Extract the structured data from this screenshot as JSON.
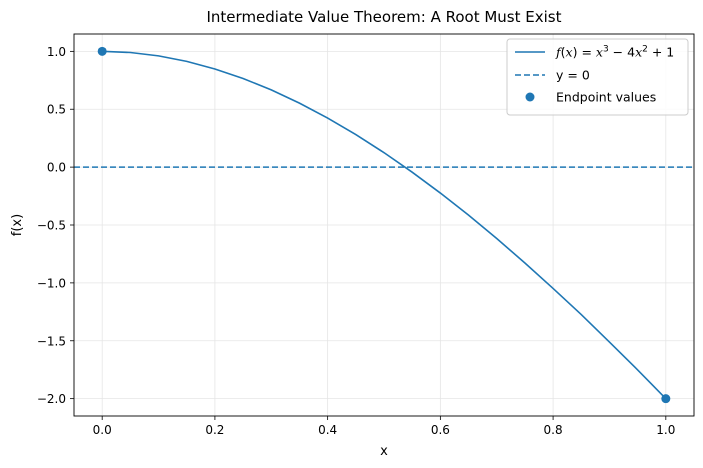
{
  "chart_data": {
    "type": "line",
    "title": "Intermediate Value Theorem: A Root Must Exist",
    "xlabel": "x",
    "ylabel": "f(x)",
    "xlim": [
      -0.05,
      1.05
    ],
    "ylim": [
      -2.15,
      1.15
    ],
    "xticks": [
      0.0,
      0.2,
      0.4,
      0.6,
      0.8,
      1.0
    ],
    "xtick_labels": [
      "0.0",
      "0.2",
      "0.4",
      "0.6",
      "0.8",
      "1.0"
    ],
    "yticks": [
      1.0,
      0.5,
      0.0,
      -0.5,
      -1.0,
      -1.5,
      -2.0
    ],
    "ytick_labels": [
      "1.0",
      "0.5",
      "0.0",
      "−0.5",
      "−1.0",
      "−1.5",
      "−2.0"
    ],
    "grid": true,
    "legend_position": "upper right",
    "series": [
      {
        "name": "f(x) = x^3 − 4x^2 + 1",
        "style": "solid",
        "color": "#1f77b4",
        "x": [
          0.0,
          0.05,
          0.1,
          0.15,
          0.2,
          0.25,
          0.3,
          0.35,
          0.4,
          0.45,
          0.5,
          0.55,
          0.6,
          0.65,
          0.7,
          0.75,
          0.8,
          0.85,
          0.9,
          0.95,
          1.0
        ],
        "y": [
          1.0,
          0.990125,
          0.961,
          0.913375,
          0.848,
          0.765625,
          0.667,
          0.552875,
          0.424,
          0.281125,
          0.125,
          -0.043625,
          -0.224,
          -0.414375,
          -0.617,
          -0.828125,
          -1.048,
          -1.273875,
          -1.511,
          -1.751625,
          -2.0
        ]
      },
      {
        "name": "y = 0",
        "style": "dashed",
        "color": "#1f77b4",
        "y_const": 0
      },
      {
        "name": "Endpoint values",
        "style": "scatter",
        "color": "#1f77b4",
        "points": [
          [
            0.0,
            1.0
          ],
          [
            1.0,
            -2.0
          ]
        ]
      }
    ]
  }
}
